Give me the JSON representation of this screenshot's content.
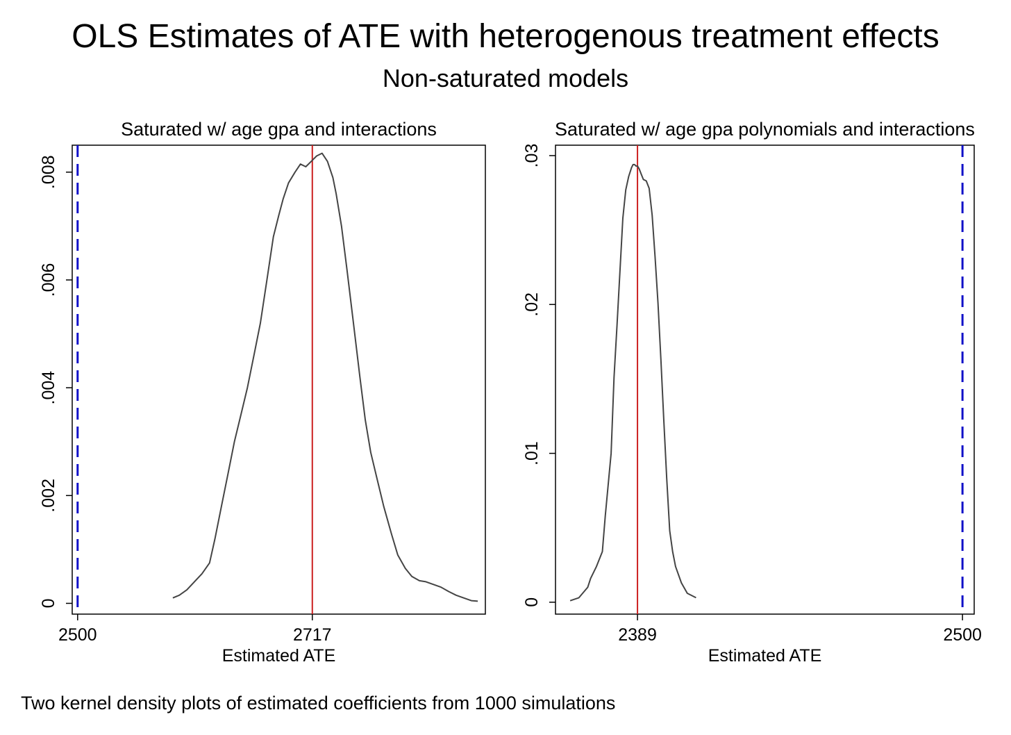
{
  "figure": {
    "title": "OLS Estimates of ATE with heterogenous treatment effects",
    "subtitle": "Non-saturated models",
    "note": "Two kernel density plots of estimated coefficients from 1000 simulations"
  },
  "chart_data": [
    {
      "type": "line",
      "title": "Saturated w/ age gpa and interactions",
      "xlabel": "Estimated ATE",
      "ylabel": "",
      "xlim": [
        2495,
        2877
      ],
      "ylim": [
        -0.0002,
        0.0085
      ],
      "x_ticks": [
        {
          "value": 2500,
          "label": "2500"
        },
        {
          "value": 2717,
          "label": "2717"
        }
      ],
      "y_ticks": [
        {
          "value": 0,
          "label": "0"
        },
        {
          "value": 0.002,
          "label": ".002"
        },
        {
          "value": 0.004,
          "label": ".004"
        },
        {
          "value": 0.006,
          "label": ".006"
        },
        {
          "value": 0.008,
          "label": ".008"
        }
      ],
      "reference_lines": [
        {
          "kind": "dashed",
          "value": 2500,
          "color": "#1010c8"
        },
        {
          "kind": "solid",
          "value": 2717,
          "color": "#cc2020"
        }
      ],
      "grid": false,
      "series": [
        {
          "color": "#444444",
          "x": [
            2588,
            2594,
            2601,
            2608,
            2615,
            2622,
            2627,
            2633,
            2639,
            2645,
            2651,
            2657,
            2663,
            2669,
            2675,
            2681,
            2686,
            2690,
            2695,
            2701,
            2706,
            2711,
            2716,
            2721,
            2726,
            2731,
            2736,
            2739,
            2744,
            2749,
            2755,
            2761,
            2766,
            2771,
            2777,
            2783,
            2790,
            2796,
            2803,
            2809,
            2816,
            2822,
            2829,
            2836,
            2843,
            2850,
            2857,
            2864,
            2870
          ],
          "y": [
            0.0001,
            0.00015,
            0.00025,
            0.0004,
            0.00055,
            0.00075,
            0.0012,
            0.0018,
            0.0024,
            0.003,
            0.0035,
            0.004,
            0.0046,
            0.0052,
            0.006,
            0.0068,
            0.0072,
            0.0075,
            0.0078,
            0.008,
            0.00815,
            0.0081,
            0.0082,
            0.0083,
            0.00835,
            0.0082,
            0.0079,
            0.0076,
            0.007,
            0.0062,
            0.0052,
            0.0042,
            0.0034,
            0.0028,
            0.0023,
            0.0018,
            0.0013,
            0.0009,
            0.00065,
            0.0005,
            0.00042,
            0.0004,
            0.00035,
            0.0003,
            0.00022,
            0.00015,
            0.0001,
            5e-05,
            4e-05
          ]
        }
      ]
    },
    {
      "type": "line",
      "title": "Saturated w/ age gpa polynomials and interactions",
      "xlabel": "Estimated ATE",
      "ylabel": "",
      "xlim": [
        2361,
        2504
      ],
      "ylim": [
        -0.0008,
        0.0307
      ],
      "x_ticks": [
        {
          "value": 2389,
          "label": "2389"
        },
        {
          "value": 2500,
          "label": "2500"
        }
      ],
      "y_ticks": [
        {
          "value": 0,
          "label": "0"
        },
        {
          "value": 0.01,
          "label": ".01"
        },
        {
          "value": 0.02,
          "label": ".02"
        },
        {
          "value": 0.03,
          "label": ".03"
        }
      ],
      "reference_lines": [
        {
          "kind": "solid",
          "value": 2389,
          "color": "#cc2020"
        },
        {
          "kind": "dashed",
          "value": 2500,
          "color": "#1010c8"
        }
      ],
      "grid": false,
      "series": [
        {
          "color": "#444444",
          "x": [
            2366,
            2369,
            2372,
            2373,
            2375,
            2377,
            2378,
            2380,
            2381,
            2382,
            2383,
            2384,
            2385,
            2386,
            2387,
            2387.5,
            2388,
            2388.5,
            2389,
            2389.6,
            2390.2,
            2391,
            2392,
            2393,
            2394,
            2395,
            2396,
            2397,
            2398,
            2399,
            2400,
            2401,
            2402,
            2404,
            2406,
            2409
          ],
          "y": [
            0.0001,
            0.0003,
            0.001,
            0.0016,
            0.0024,
            0.0034,
            0.0058,
            0.01,
            0.0151,
            0.0186,
            0.0222,
            0.0258,
            0.0277,
            0.0286,
            0.0292,
            0.0294,
            0.0294,
            0.0293,
            0.0293,
            0.0291,
            0.0288,
            0.0284,
            0.0283,
            0.0278,
            0.026,
            0.0232,
            0.0201,
            0.0163,
            0.0122,
            0.0083,
            0.0048,
            0.0034,
            0.0024,
            0.0013,
            0.0006,
            0.0003
          ]
        }
      ]
    }
  ]
}
